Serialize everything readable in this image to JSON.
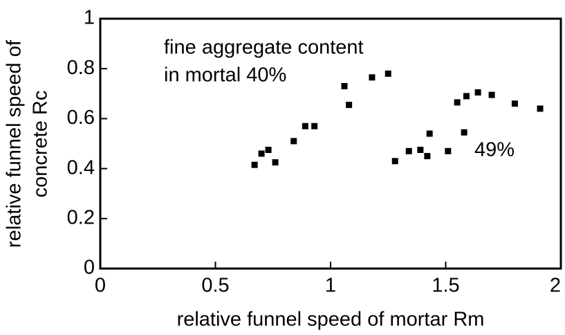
{
  "chart_data": {
    "type": "scatter",
    "xlabel": "relative funnel speed of mortar Rm",
    "ylabel": [
      "relative funnel speed of",
      "concrete Rc"
    ],
    "annotations": [
      "fine aggregate content",
      "in mortal 40%",
      "49%"
    ],
    "color": "#000000",
    "x": [
      0.67,
      0.7,
      0.73,
      0.76,
      0.84,
      0.89,
      0.93,
      1.06,
      1.08,
      1.18,
      1.25,
      1.28,
      1.34,
      1.39,
      1.42,
      1.43,
      1.51,
      1.55,
      1.58,
      1.59,
      1.64,
      1.7,
      1.8,
      1.91
    ],
    "values": [
      0.415,
      0.46,
      0.475,
      0.425,
      0.51,
      0.57,
      0.57,
      0.73,
      0.655,
      0.765,
      0.78,
      0.43,
      0.47,
      0.475,
      0.45,
      0.54,
      0.47,
      0.665,
      0.545,
      0.69,
      0.705,
      0.695,
      0.66,
      0.64
    ],
    "xlim": [
      0,
      2
    ],
    "ylim": [
      0,
      1
    ],
    "xticks": [
      0,
      0.5,
      1,
      1.5,
      2
    ],
    "yticks": [
      0,
      0.2,
      0.4,
      0.6,
      0.8,
      1
    ]
  }
}
